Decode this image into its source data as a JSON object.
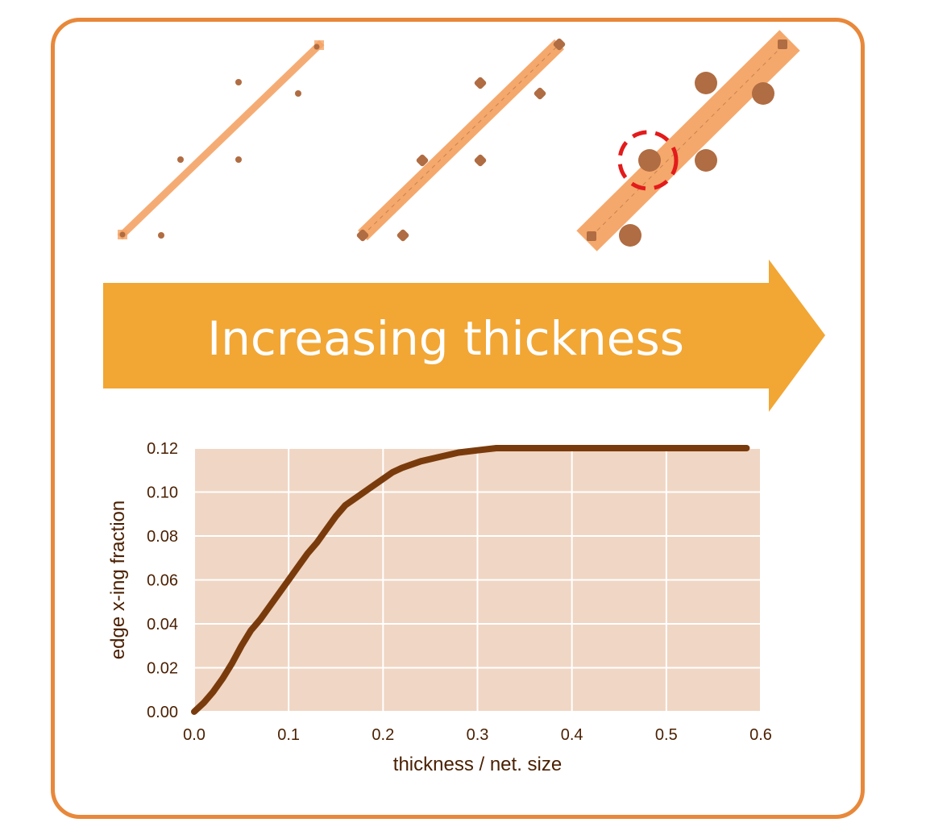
{
  "banner": {
    "label": "Increasing thickness",
    "color": "#f2a634"
  },
  "panels": [
    {
      "thickness": 0.02,
      "node_size": "small"
    },
    {
      "thickness": 0.06,
      "node_size": "medium"
    },
    {
      "thickness": 0.18,
      "node_size": "large",
      "highlighted_crossing": true
    }
  ],
  "colors": {
    "frame": "#e8883a",
    "edge": "#f5a465",
    "node": "#b06c42",
    "highlight": "#e31b1b",
    "plot_bg": "#f0d6c4",
    "curve": "#7a3b0c"
  },
  "chart_data": {
    "type": "line",
    "title": "",
    "xlabel": "thickness / net. size",
    "ylabel": "edge x-ing fraction",
    "xlim": [
      0.0,
      0.6
    ],
    "ylim": [
      0.0,
      0.12
    ],
    "x_ticks": [
      "0.0",
      "0.1",
      "0.2",
      "0.3",
      "0.4",
      "0.5",
      "0.6"
    ],
    "y_ticks": [
      "0.00",
      "0.02",
      "0.04",
      "0.06",
      "0.08",
      "0.10",
      "0.12"
    ],
    "grid": true,
    "series": [
      {
        "x": [
          0.0,
          0.01,
          0.02,
          0.03,
          0.04,
          0.05,
          0.06,
          0.07,
          0.08,
          0.09,
          0.1,
          0.11,
          0.12,
          0.13,
          0.14,
          0.15,
          0.16,
          0.17,
          0.18,
          0.19,
          0.2,
          0.21,
          0.22,
          0.24,
          0.26,
          0.28,
          0.3,
          0.32,
          0.35,
          0.4,
          0.45,
          0.5,
          0.55,
          0.585
        ],
        "y": [
          0.0,
          0.004,
          0.009,
          0.015,
          0.022,
          0.03,
          0.037,
          0.042,
          0.048,
          0.054,
          0.06,
          0.066,
          0.072,
          0.077,
          0.083,
          0.089,
          0.094,
          0.097,
          0.1,
          0.103,
          0.106,
          0.109,
          0.111,
          0.114,
          0.116,
          0.118,
          0.119,
          0.12,
          0.12,
          0.12,
          0.12,
          0.12,
          0.12,
          0.12
        ]
      }
    ]
  }
}
